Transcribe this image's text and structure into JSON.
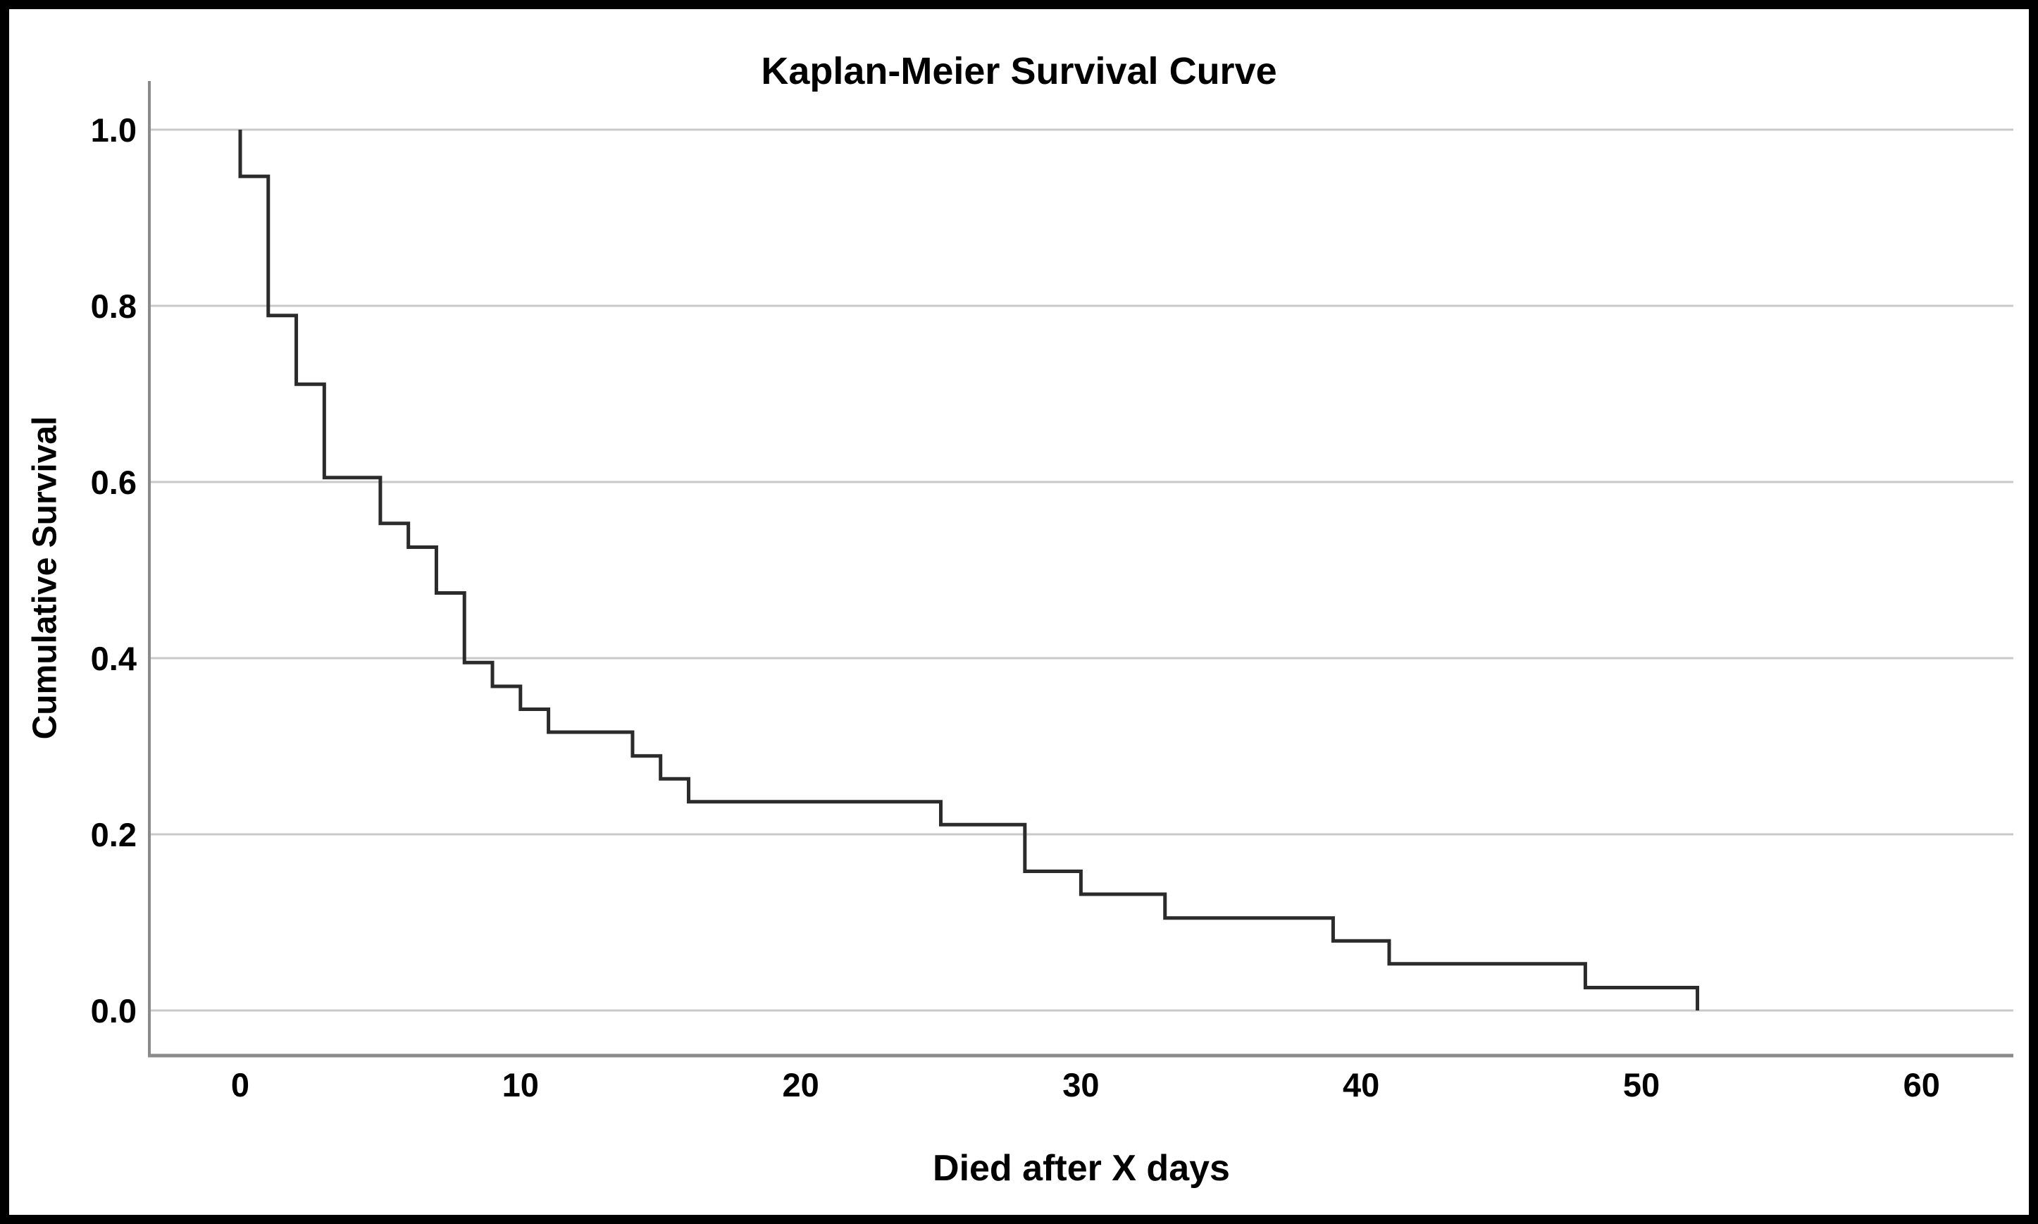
{
  "chart_data": {
    "type": "line",
    "subtype": "step-survival",
    "title": "Kaplan-Meier Survival Curve",
    "xlabel": "Died after X days",
    "ylabel": "Cumulative Survival",
    "xlim": [
      -3.2,
      63.3
    ],
    "ylim": [
      -0.05,
      1.06
    ],
    "x_ticks": [
      0,
      10,
      20,
      30,
      40,
      50,
      60
    ],
    "y_ticks": [
      {
        "label": "1.0",
        "value": 1.0
      },
      {
        "label": "0.8",
        "value": 0.8
      },
      {
        "label": "0.6",
        "value": 0.6
      },
      {
        "label": "0.4",
        "value": 0.4
      },
      {
        "label": "0.2",
        "value": 0.2
      },
      {
        "label": "0.0",
        "value": 0.0
      }
    ],
    "grid": "horizontal-only",
    "legend": "none",
    "series": [
      {
        "name": "cumulative-survival",
        "start": {
          "day": 0,
          "survival": 1.0
        },
        "steps": [
          {
            "day": 0,
            "survival": 0.947
          },
          {
            "day": 1,
            "survival": 0.789
          },
          {
            "day": 2,
            "survival": 0.711
          },
          {
            "day": 3,
            "survival": 0.605
          },
          {
            "day": 5,
            "survival": 0.553
          },
          {
            "day": 6,
            "survival": 0.526
          },
          {
            "day": 7,
            "survival": 0.474
          },
          {
            "day": 8,
            "survival": 0.395
          },
          {
            "day": 9,
            "survival": 0.368
          },
          {
            "day": 10,
            "survival": 0.342
          },
          {
            "day": 11,
            "survival": 0.316
          },
          {
            "day": 14,
            "survival": 0.289
          },
          {
            "day": 15,
            "survival": 0.263
          },
          {
            "day": 16,
            "survival": 0.237
          },
          {
            "day": 25,
            "survival": 0.211
          },
          {
            "day": 28,
            "survival": 0.158
          },
          {
            "day": 30,
            "survival": 0.132
          },
          {
            "day": 33,
            "survival": 0.105
          },
          {
            "day": 39,
            "survival": 0.079
          },
          {
            "day": 41,
            "survival": 0.053
          },
          {
            "day": 48,
            "survival": 0.026
          },
          {
            "day": 52,
            "survival": 0.0
          }
        ]
      }
    ]
  },
  "colors": {
    "background": "#ffffff",
    "frame": "#000000",
    "gridline": "#c9c9c9",
    "axis_line": "#8a8a8a",
    "curve": "#2b2b2b",
    "text": "#000000"
  }
}
